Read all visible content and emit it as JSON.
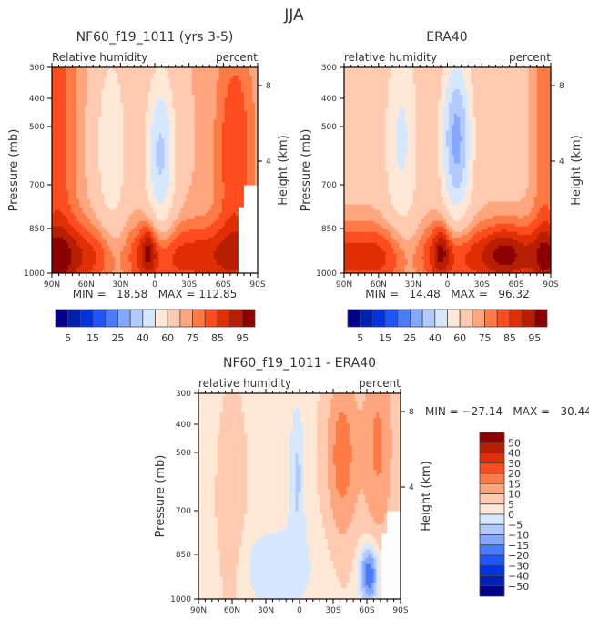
{
  "figure_title": "JJA",
  "palettes": {
    "colors": [
      "#00008b",
      "#0020b4",
      "#0033e0",
      "#1f55ff",
      "#4a7bff",
      "#84a8ff",
      "#b3caff",
      "#d6e8ff",
      "#ffe9d6",
      "#ffcab0",
      "#ffa67e",
      "#ff7a45",
      "#ff4c1f",
      "#e02f05",
      "#b81e00",
      "#8b0000"
    ]
  },
  "chart_data": [
    {
      "type": "heatmap",
      "id": "model",
      "title": "NF60_f19_1011 (yrs 3-5)",
      "left_label": "Relative humidity",
      "right_label": "percent",
      "xlabel": "",
      "ylabel": "Pressure (mb)",
      "y2label": "Height (km)",
      "x_ticks": [
        "90N",
        "60N",
        "30N",
        "0",
        "30S",
        "60S",
        "90S"
      ],
      "x_range": [
        90,
        -90
      ],
      "y_ticks": [
        "300",
        "400",
        "500",
        "700",
        "850",
        "1000"
      ],
      "y_range": [
        300,
        1000
      ],
      "y2_ticks": [
        "8",
        "4"
      ],
      "stats": "MIN =   18.58   MAX = 112.85",
      "min": 18.58,
      "max": 112.85,
      "levels": [
        5,
        10,
        15,
        20,
        25,
        30,
        40,
        50,
        60,
        70,
        75,
        80,
        85,
        90,
        95
      ],
      "colorbar_labels": [
        "5",
        "15",
        "25",
        "40",
        "60",
        "75",
        "85",
        "95"
      ],
      "colorbar_orientation": "horizontal"
    },
    {
      "type": "heatmap",
      "id": "obs",
      "title": "ERA40",
      "left_label": "relative humidity",
      "right_label": "percent",
      "xlabel": "",
      "ylabel": "Pressure (mb)",
      "y2label": "Height (km)",
      "x_ticks": [
        "90N",
        "60N",
        "30N",
        "0",
        "30S",
        "60S",
        "90S"
      ],
      "x_range": [
        90,
        -90
      ],
      "y_ticks": [
        "300",
        "400",
        "500",
        "700",
        "850",
        "1000"
      ],
      "y_range": [
        300,
        1000
      ],
      "y2_ticks": [
        "8",
        "4"
      ],
      "stats": "MIN =   14.48   MAX =   96.32",
      "min": 14.48,
      "max": 96.32,
      "levels": [
        5,
        10,
        15,
        20,
        25,
        30,
        40,
        50,
        60,
        70,
        75,
        80,
        85,
        90,
        95
      ],
      "colorbar_labels": [
        "5",
        "15",
        "25",
        "40",
        "60",
        "75",
        "85",
        "95"
      ],
      "colorbar_orientation": "horizontal"
    },
    {
      "type": "heatmap",
      "id": "diff",
      "title": "NF60_f19_1011 - ERA40",
      "left_label": "relative humidity",
      "right_label": "percent",
      "xlabel": "",
      "ylabel": "Pressure (mb)",
      "y2label": "Height (km)",
      "x_ticks": [
        "90N",
        "60N",
        "30N",
        "0",
        "30S",
        "60S",
        "90S"
      ],
      "x_range": [
        90,
        -90
      ],
      "y_ticks": [
        "300",
        "400",
        "500",
        "700",
        "850",
        "1000"
      ],
      "y_range": [
        300,
        1000
      ],
      "y2_ticks": [
        "8",
        "4"
      ],
      "stats": "MIN = −27.14   MAX =   30.44",
      "min": -27.14,
      "max": 30.44,
      "levels": [
        -50,
        -40,
        -30,
        -20,
        -15,
        -10,
        -5,
        0,
        5,
        10,
        15,
        20,
        30,
        40,
        50
      ],
      "colorbar_labels": [
        "50",
        "40",
        "30",
        "20",
        "15",
        "10",
        "5",
        "0",
        "−5",
        "−10",
        "−15",
        "−20",
        "−30",
        "−40",
        "−50"
      ],
      "colorbar_orientation": "vertical"
    }
  ]
}
